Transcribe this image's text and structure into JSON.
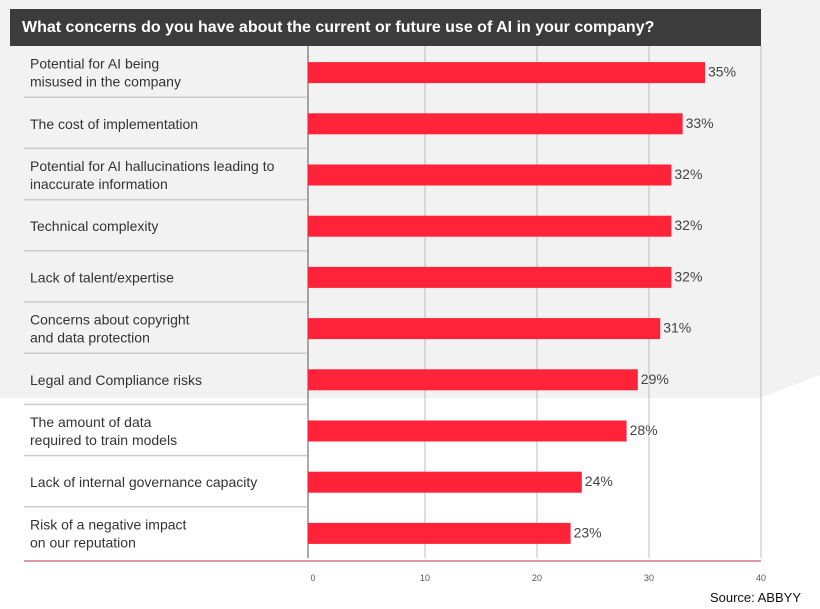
{
  "title": "What concerns do you have about the current or future use of AI in your company?",
  "source": "Source: ABBYY",
  "colors": {
    "bar": "#ff2339",
    "title_bg": "#3c3c3c",
    "row_bg": "#f2f2f2",
    "divider": "#cccccc"
  },
  "chart_data": {
    "type": "bar",
    "orientation": "horizontal",
    "title": "What concerns do you have about the current or future use of AI in your company?",
    "categories": [
      [
        "Potential for AI being",
        "misused in the company"
      ],
      [
        "The cost of implementation"
      ],
      [
        "Potential for AI hallucinations leading to",
        "inaccurate information"
      ],
      [
        "Technical complexity"
      ],
      [
        "Lack of talent/expertise"
      ],
      [
        "Concerns about copyright",
        "and data protection"
      ],
      [
        "Legal and Compliance risks"
      ],
      [
        "The amount of data",
        "required to train models"
      ],
      [
        "Lack of internal governance capacity"
      ],
      [
        "Risk of a negative impact",
        "on our reputation"
      ]
    ],
    "values": [
      35,
      33,
      32,
      32,
      32,
      31,
      29,
      28,
      24,
      23
    ],
    "value_labels": [
      "35%",
      "33%",
      "32%",
      "32%",
      "32%",
      "31%",
      "29%",
      "28%",
      "24%",
      "23%"
    ],
    "xlim": [
      0,
      40
    ],
    "xticks": [
      "0",
      "10",
      "20",
      "30",
      "40"
    ],
    "grid": true
  }
}
